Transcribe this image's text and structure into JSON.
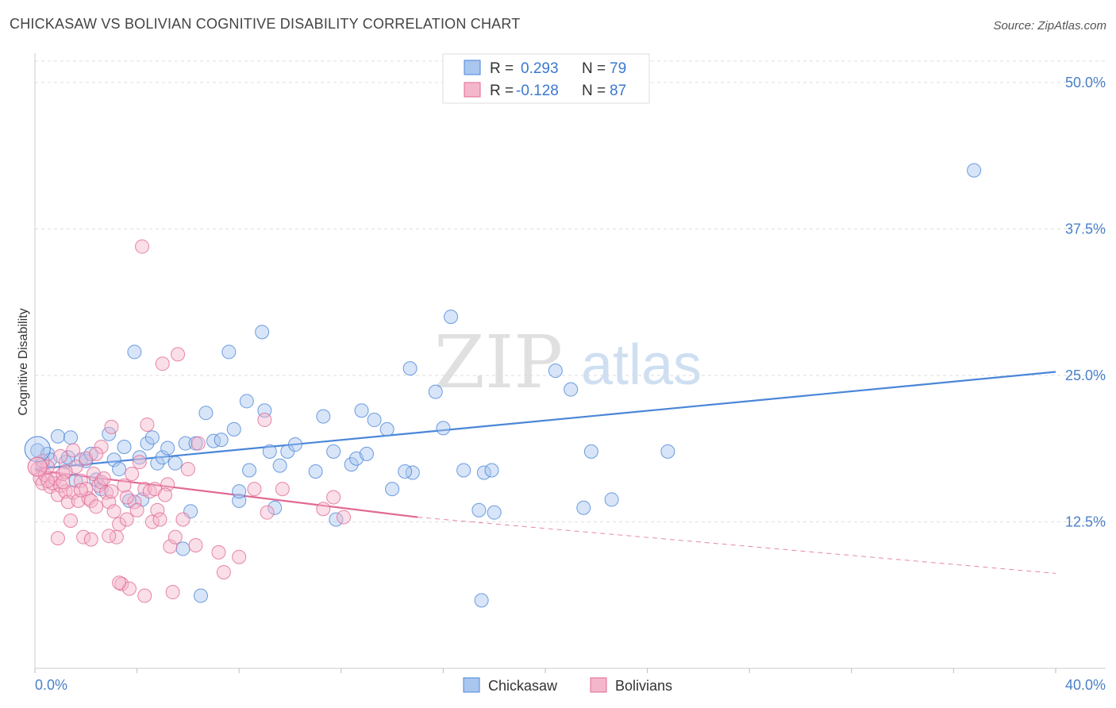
{
  "title": "CHICKASAW VS BOLIVIAN COGNITIVE DISABILITY CORRELATION CHART",
  "source": "Source: ZipAtlas.com",
  "watermark": {
    "zip": "ZIP",
    "atlas": "atlas"
  },
  "legend_top": {
    "r_label": "R =",
    "n_label": "N =",
    "rows": [
      {
        "r": "0.293",
        "n": "79"
      },
      {
        "r": "-0.128",
        "n": "87"
      }
    ]
  },
  "legend_bottom": [
    "Chickasaw",
    "Bolivians"
  ],
  "colors": {
    "blue": "#4a86d8",
    "blue_fill": "#a9c6ef",
    "pink": "#e06a94",
    "pink_fill": "#f4b6cb",
    "value_text": "#3a78d0",
    "axis_text": "#4a80c8",
    "grid": "#dddddd"
  },
  "chart_data": {
    "type": "scatter",
    "title": "CHICKASAW VS BOLIVIAN COGNITIVE DISABILITY CORRELATION CHART",
    "xlabel": "",
    "ylabel": "Cognitive Disability",
    "xlim": [
      0,
      40
    ],
    "ylim": [
      0,
      52.5
    ],
    "x_tick_labels": [
      "0.0%",
      "40.0%"
    ],
    "y_ticks": [
      12.5,
      25.0,
      37.5,
      50.0
    ],
    "y_tick_labels": [
      "12.5%",
      "25.0%",
      "37.5%",
      "50.0%"
    ],
    "grid": true,
    "legend_position": "top-center",
    "series": [
      {
        "name": "Chickasaw",
        "color": "#4a86d8",
        "r": 0.293,
        "n": 79,
        "trend": {
          "x": [
            0,
            40
          ],
          "y": [
            17.0,
            25.3
          ]
        },
        "points": [
          [
            0.1,
            18.6
          ],
          [
            0.3,
            17.4
          ],
          [
            0.5,
            18.3
          ],
          [
            0.6,
            17.8
          ],
          [
            0.9,
            19.8
          ],
          [
            1.2,
            17.6
          ],
          [
            1.3,
            18.0
          ],
          [
            1.4,
            19.7
          ],
          [
            1.6,
            16.0
          ],
          [
            1.8,
            17.8
          ],
          [
            2.0,
            17.7
          ],
          [
            2.2,
            18.3
          ],
          [
            2.4,
            16.1
          ],
          [
            2.6,
            15.3
          ],
          [
            2.9,
            20.0
          ],
          [
            3.1,
            17.8
          ],
          [
            3.3,
            17.0
          ],
          [
            3.5,
            18.9
          ],
          [
            3.7,
            14.3
          ],
          [
            3.9,
            27.0
          ],
          [
            4.1,
            18.0
          ],
          [
            4.2,
            14.4
          ],
          [
            4.4,
            19.2
          ],
          [
            4.6,
            19.7
          ],
          [
            4.8,
            17.5
          ],
          [
            5.0,
            18.0
          ],
          [
            5.2,
            18.8
          ],
          [
            5.5,
            17.5
          ],
          [
            5.8,
            10.2
          ],
          [
            5.9,
            19.2
          ],
          [
            6.1,
            13.4
          ],
          [
            6.3,
            19.2
          ],
          [
            6.5,
            6.2
          ],
          [
            6.7,
            21.8
          ],
          [
            7.0,
            19.4
          ],
          [
            7.3,
            19.5
          ],
          [
            7.6,
            27.0
          ],
          [
            7.8,
            20.4
          ],
          [
            8.0,
            14.3
          ],
          [
            8.3,
            22.8
          ],
          [
            8.4,
            16.9
          ],
          [
            8.9,
            28.7
          ],
          [
            9.0,
            22.0
          ],
          [
            9.2,
            18.5
          ],
          [
            9.6,
            17.3
          ],
          [
            9.9,
            18.5
          ],
          [
            10.2,
            19.1
          ],
          [
            11.0,
            16.8
          ],
          [
            11.3,
            21.5
          ],
          [
            11.7,
            18.5
          ],
          [
            11.8,
            12.7
          ],
          [
            12.4,
            17.4
          ],
          [
            12.6,
            17.9
          ],
          [
            12.8,
            22.0
          ],
          [
            13.0,
            18.3
          ],
          [
            13.3,
            21.2
          ],
          [
            14.0,
            15.3
          ],
          [
            13.8,
            20.4
          ],
          [
            14.7,
            25.6
          ],
          [
            14.8,
            16.7
          ],
          [
            14.5,
            16.8
          ],
          [
            15.7,
            23.6
          ],
          [
            16.3,
            30.0
          ],
          [
            16.0,
            20.5
          ],
          [
            16.8,
            16.9
          ],
          [
            17.4,
            13.5
          ],
          [
            17.6,
            16.7
          ],
          [
            17.9,
            16.9
          ],
          [
            17.5,
            5.8
          ],
          [
            18.0,
            13.3
          ],
          [
            20.4,
            25.4
          ],
          [
            21.0,
            23.8
          ],
          [
            21.5,
            13.7
          ],
          [
            21.8,
            18.5
          ],
          [
            22.6,
            14.4
          ],
          [
            24.8,
            18.5
          ],
          [
            9.4,
            13.7
          ],
          [
            8.0,
            15.1
          ],
          [
            36.8,
            42.5
          ]
        ]
      },
      {
        "name": "Bolivians",
        "color": "#e06a94",
        "r": -0.128,
        "n": 87,
        "trend": {
          "x": [
            0,
            15
          ],
          "y": [
            16.9,
            12.9
          ]
        },
        "trend_dashed": {
          "x": [
            15,
            40
          ],
          "y": [
            12.9,
            8.1
          ]
        },
        "points": [
          [
            0.1,
            17.0
          ],
          [
            0.2,
            16.2
          ],
          [
            0.3,
            15.8
          ],
          [
            0.4,
            16.5
          ],
          [
            0.5,
            17.2
          ],
          [
            0.6,
            15.5
          ],
          [
            0.7,
            15.8
          ],
          [
            0.8,
            16.2
          ],
          [
            0.9,
            14.8
          ],
          [
            1.0,
            15.6
          ],
          [
            1.1,
            16.6
          ],
          [
            1.2,
            15.1
          ],
          [
            1.3,
            14.2
          ],
          [
            1.4,
            12.6
          ],
          [
            1.5,
            15.0
          ],
          [
            1.6,
            17.2
          ],
          [
            1.7,
            14.3
          ],
          [
            1.8,
            16.0
          ],
          [
            1.9,
            11.2
          ],
          [
            2.0,
            15.3
          ],
          [
            2.1,
            14.5
          ],
          [
            2.2,
            14.3
          ],
          [
            2.3,
            16.6
          ],
          [
            2.4,
            13.8
          ],
          [
            2.5,
            15.6
          ],
          [
            2.6,
            15.9
          ],
          [
            2.7,
            16.2
          ],
          [
            2.8,
            15.0
          ],
          [
            2.9,
            14.2
          ],
          [
            3.0,
            15.1
          ],
          [
            3.1,
            13.4
          ],
          [
            3.2,
            11.2
          ],
          [
            3.3,
            12.3
          ],
          [
            3.4,
            7.2
          ],
          [
            3.5,
            15.6
          ],
          [
            3.6,
            12.7
          ],
          [
            3.7,
            6.8
          ],
          [
            3.8,
            16.6
          ],
          [
            3.9,
            14.2
          ],
          [
            4.0,
            13.5
          ],
          [
            4.1,
            17.6
          ],
          [
            4.2,
            36.0
          ],
          [
            4.3,
            15.3
          ],
          [
            4.4,
            20.8
          ],
          [
            4.5,
            15.1
          ],
          [
            4.6,
            12.5
          ],
          [
            4.7,
            15.3
          ],
          [
            4.8,
            13.5
          ],
          [
            4.9,
            12.7
          ],
          [
            5.0,
            26.0
          ],
          [
            5.2,
            15.7
          ],
          [
            5.3,
            10.4
          ],
          [
            5.4,
            6.5
          ],
          [
            5.5,
            11.2
          ],
          [
            5.6,
            26.8
          ],
          [
            5.8,
            12.7
          ],
          [
            6.0,
            17.0
          ],
          [
            6.3,
            10.5
          ],
          [
            6.4,
            19.2
          ],
          [
            7.2,
            9.9
          ],
          [
            7.4,
            8.2
          ],
          [
            8.0,
            9.5
          ],
          [
            8.6,
            15.3
          ],
          [
            9.0,
            21.2
          ],
          [
            9.1,
            13.3
          ],
          [
            9.7,
            15.3
          ],
          [
            11.3,
            13.6
          ],
          [
            11.7,
            14.6
          ],
          [
            12.1,
            12.9
          ],
          [
            0.3,
            17.7
          ],
          [
            1.0,
            18.1
          ],
          [
            2.0,
            17.9
          ],
          [
            3.0,
            20.6
          ],
          [
            2.6,
            18.9
          ],
          [
            1.5,
            18.6
          ],
          [
            2.4,
            18.3
          ],
          [
            3.3,
            7.3
          ],
          [
            4.3,
            6.2
          ],
          [
            0.9,
            11.1
          ],
          [
            2.9,
            11.3
          ],
          [
            1.2,
            16.8
          ],
          [
            0.5,
            16.0
          ],
          [
            1.8,
            15.2
          ],
          [
            2.2,
            11.0
          ],
          [
            3.6,
            14.6
          ],
          [
            1.1,
            15.9
          ],
          [
            5.1,
            14.8
          ]
        ]
      }
    ]
  }
}
